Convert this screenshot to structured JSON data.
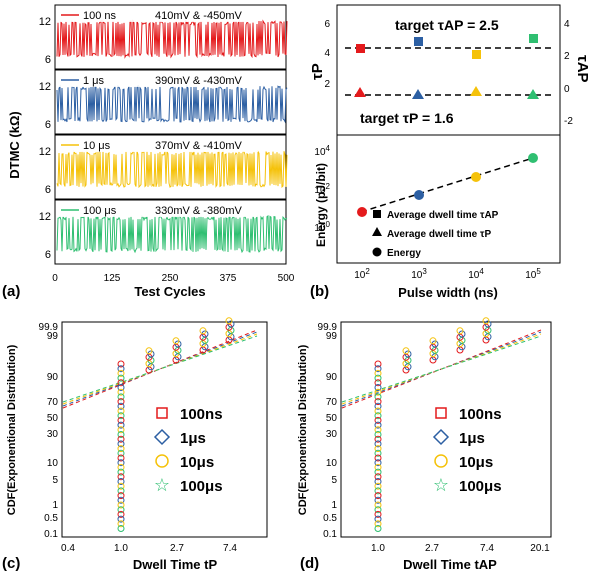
{
  "panels": {
    "a": {
      "label": "(a)",
      "ylabel": "DTMC (kΩ)",
      "xlabel": "Test Cycles",
      "xticks": [
        "0",
        "125",
        "250",
        "375",
        "500"
      ],
      "subplots": [
        {
          "name": "100 ns",
          "volt": "410mV & -450mV",
          "color": "#e41a1c",
          "yticks": [
            "12",
            "6"
          ]
        },
        {
          "name": "1 μs",
          "volt": "390mV & -430mV",
          "color": "#2c5fa3",
          "yticks": [
            "12",
            "6"
          ]
        },
        {
          "name": "10 μs",
          "volt": "370mV & -410mV",
          "color": "#f5c20a",
          "yticks": [
            "12",
            "6"
          ]
        },
        {
          "name": "100 μs",
          "volt": "330mV & -380mV",
          "color": "#2fbf71",
          "yticks": [
            "12",
            "6"
          ]
        }
      ]
    },
    "b": {
      "label": "(b)",
      "xlabel": "Pulse width (ns)",
      "target_ap": "target τAP = 2.5",
      "target_p": "target τP = 1.6",
      "top_ylabel_left": "τP",
      "top_ylabel_right": "τAP",
      "top_left_ticks": [
        "6",
        "4",
        "2"
      ],
      "top_right_ticks": [
        "4",
        "2",
        "0",
        "-2"
      ],
      "bottom_ylabel": "Energy (pJ/bit)",
      "legend": [
        "Average dwell time τAP",
        "Average dwell time τP",
        "Energy"
      ]
    },
    "c": {
      "label": "(c)",
      "ylabel": "CDF(Exponentional Distribution)",
      "xlabel": "Dwell Time tP",
      "xticks": [
        "0.4",
        "1.0",
        "2.7",
        "7.4"
      ],
      "yticks": [
        "99.9",
        "99",
        "90",
        "70",
        "50",
        "30",
        "10",
        "5",
        "1",
        "0.5",
        "0.1"
      ],
      "legend": [
        "100ns",
        "1μs",
        "10μs",
        "100μs"
      ]
    },
    "d": {
      "label": "(d)",
      "ylabel": "CDF(Exponentional Distribution)",
      "xlabel": "Dwell Time tAP",
      "xticks": [
        "1.0",
        "2.7",
        "7.4",
        "20.1"
      ],
      "yticks": [
        "99.9",
        "99",
        "90",
        "70",
        "50",
        "30",
        "10",
        "5",
        "1",
        "0.5",
        "0.1"
      ],
      "legend": [
        "100ns",
        "1μs",
        "10μs",
        "100μs"
      ]
    }
  },
  "colors": {
    "100ns": "#e41a1c",
    "1us": "#2c5fa3",
    "10us": "#f5c20a",
    "100us": "#2fbf71"
  },
  "chart_data": [
    {
      "type": "line",
      "panel": "a",
      "xlabel": "Test Cycles",
      "ylabel": "DTMC (kΩ)",
      "xlim": [
        0,
        500
      ],
      "series": [
        {
          "name": "100 ns",
          "levels": [
            6,
            12
          ]
        },
        {
          "name": "1 μs",
          "levels": [
            6,
            12
          ]
        },
        {
          "name": "10 μs",
          "levels": [
            6,
            12
          ]
        },
        {
          "name": "100 μs",
          "levels": [
            6,
            12
          ]
        }
      ]
    },
    {
      "type": "scatter",
      "panel": "b-top",
      "x": [
        100,
        1000,
        10000,
        100000
      ],
      "xscale": "log",
      "series": [
        {
          "name": "Average dwell time τAP",
          "values": [
            2.4,
            3.0,
            1.9,
            3.2
          ],
          "color": [
            "#e41a1c",
            "#2c5fa3",
            "#f5c20a",
            "#2fbf71"
          ],
          "axis": "right"
        },
        {
          "name": "Average dwell time τP",
          "values": [
            1.6,
            1.5,
            1.6,
            1.5
          ],
          "color": [
            "#e41a1c",
            "#2c5fa3",
            "#f5c20a",
            "#2fbf71"
          ],
          "axis": "left"
        }
      ],
      "targets": {
        "tau_ap": 2.5,
        "tau_p": 1.6
      }
    },
    {
      "type": "scatter",
      "panel": "b-bottom",
      "x": [
        100,
        1000,
        10000,
        100000
      ],
      "xscale": "log",
      "yscale": "log",
      "ylabel": "Energy (pJ/bit)",
      "series": [
        {
          "name": "Energy",
          "values": [
            2,
            40,
            250,
            5000
          ]
        }
      ]
    },
    {
      "type": "scatter",
      "panel": "c",
      "xlabel": "Dwell Time tP",
      "series": [
        {
          "name": "100ns",
          "x": [
            1.0,
            2.0,
            3.0,
            4.0,
            6.0,
            8.0
          ],
          "y": [
            60,
            80,
            92,
            97,
            99,
            99.5
          ]
        },
        {
          "name": "1μs",
          "x": [
            1.0,
            2.0,
            3.0,
            4.0,
            6.0,
            8.0
          ],
          "y": [
            55,
            78,
            90,
            96,
            99,
            99.5
          ]
        },
        {
          "name": "10μs",
          "x": [
            1.0,
            2.0,
            3.0,
            4.0,
            5.0,
            7.0
          ],
          "y": [
            62,
            82,
            93,
            97,
            98.5,
            99.5
          ]
        },
        {
          "name": "100μs",
          "x": [
            1.0,
            2.0,
            3.0,
            4.0,
            6.0,
            7.0
          ],
          "y": [
            58,
            79,
            91,
            96,
            98.8,
            99.6
          ]
        }
      ]
    },
    {
      "type": "scatter",
      "panel": "d",
      "xlabel": "Dwell Time tAP",
      "series": [
        {
          "name": "100ns",
          "x": [
            1.0,
            2.0,
            4.0,
            6.0,
            9.0,
            12.0
          ],
          "y": [
            45,
            70,
            90,
            96,
            99,
            99.7
          ]
        },
        {
          "name": "1μs",
          "x": [
            1.0,
            2.0,
            4.0,
            7.0,
            11.0,
            20.0
          ],
          "y": [
            40,
            65,
            87,
            94,
            98.5,
            99.8
          ]
        },
        {
          "name": "10μs",
          "x": [
            1.0,
            2.0,
            4.0,
            6.0,
            8.0,
            10.0
          ],
          "y": [
            50,
            72,
            92,
            97,
            99,
            99.7
          ]
        },
        {
          "name": "100μs",
          "x": [
            1.0,
            2.0,
            4.0,
            7.0,
            12.0,
            20.0
          ],
          "y": [
            38,
            62,
            85,
            93,
            98,
            99.8
          ]
        }
      ]
    }
  ]
}
